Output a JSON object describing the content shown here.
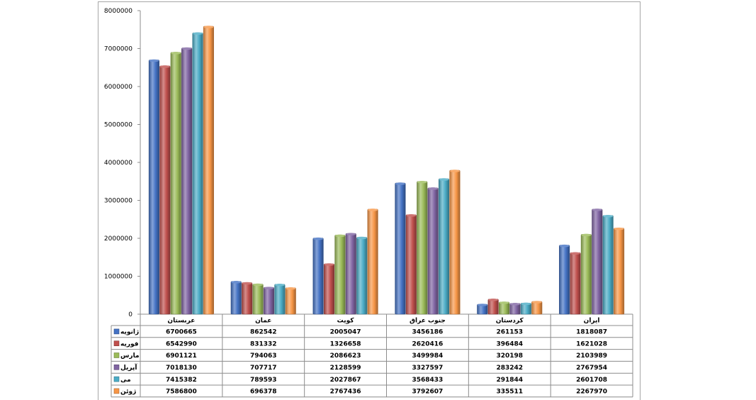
{
  "chart_data": {
    "type": "bar",
    "title": "",
    "xlabel": "",
    "ylabel": "",
    "ylim": [
      0,
      8000000
    ],
    "yticks": [
      "0",
      "1000000",
      "2000000",
      "3000000",
      "4000000",
      "5000000",
      "6000000",
      "7000000",
      "8000000"
    ],
    "categories": [
      "عربستان",
      "عمان",
      "کویت",
      "جنوب عراق",
      "کردستان",
      "ایران"
    ],
    "series": [
      {
        "name": "ژانویه",
        "color": "#4472c4",
        "values": [
          6700665,
          862542,
          2005047,
          3456186,
          261153,
          1818087
        ]
      },
      {
        "name": "فوریه",
        "color": "#c0504d",
        "values": [
          6542990,
          831332,
          1326658,
          2620416,
          396484,
          1621028
        ]
      },
      {
        "name": "مارس",
        "color": "#9bbb59",
        "values": [
          6901121,
          794063,
          2086623,
          3499984,
          320198,
          2103989
        ]
      },
      {
        "name": "آپریل",
        "color": "#8064a2",
        "values": [
          7018130,
          707717,
          2128599,
          3327597,
          283242,
          2767954
        ]
      },
      {
        "name": "می",
        "color": "#4bacc6",
        "values": [
          7415382,
          789593,
          2027867,
          3568433,
          291844,
          2601708
        ]
      },
      {
        "name": "ژوئن",
        "color": "#f79646",
        "values": [
          7586800,
          696378,
          2767436,
          3792607,
          335511,
          2267970
        ]
      }
    ],
    "data_table": true,
    "grid": false
  }
}
